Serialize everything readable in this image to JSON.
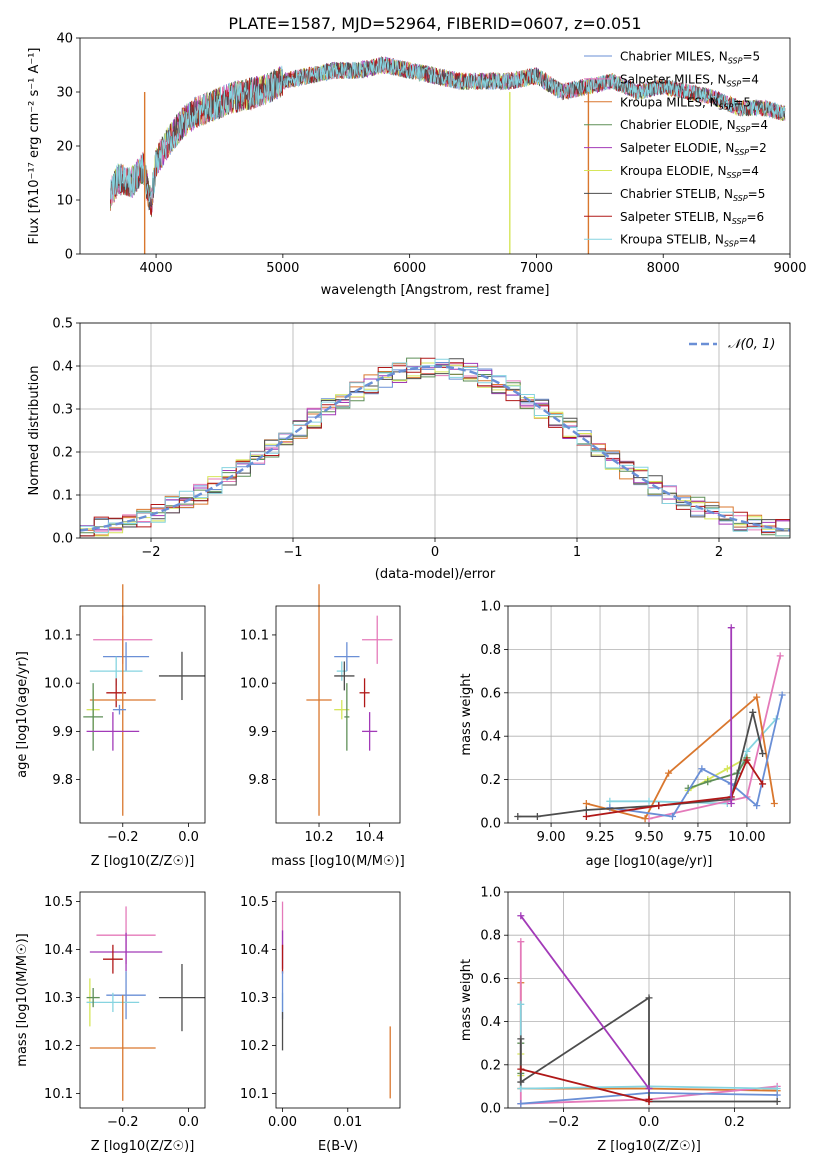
{
  "chart_data": [
    {
      "id": "spectrum",
      "type": "line",
      "title": "PLATE=1587, MJD=52964, FIBERID=0607, z=0.051",
      "xlabel": "wavelength [Angstrom, rest frame]",
      "ylabel": "Flux [fλ10⁻¹⁷ erg cm⁻² s⁻¹ A⁻¹]",
      "xlim": [
        3400,
        9000
      ],
      "ylim": [
        0,
        40
      ],
      "xticks": [
        4000,
        5000,
        6000,
        7000,
        8000,
        9000
      ],
      "yticks": [
        0,
        10,
        20,
        30,
        40
      ],
      "legend_position": "upper-right",
      "spectrum_anchors": {
        "x": [
          3640,
          3700,
          3800,
          3900,
          3960,
          4000,
          4100,
          4200,
          4300,
          4400,
          4600,
          4800,
          5000,
          5200,
          5400,
          5600,
          5800,
          6000,
          6200,
          6400,
          6600,
          6800,
          7000,
          7200,
          7400,
          7600,
          7800,
          8000,
          8200,
          8400,
          8600,
          8800,
          8960
        ],
        "y": [
          11,
          14,
          13,
          16,
          9,
          17,
          21,
          24,
          26,
          27,
          29,
          30,
          32,
          33,
          34,
          34,
          35,
          34,
          33,
          32,
          32,
          32,
          33,
          30,
          31,
          32,
          30,
          31,
          30,
          29,
          27,
          27,
          26
        ]
      },
      "series": [
        {
          "name": "Chabrier MILES, N_SSP=5",
          "label_main": "Chabrier MILES, N",
          "label_sub": "SSP",
          "label_tail": "=5",
          "color": "#6a8fd6"
        },
        {
          "name": "Salpeter MILES, N_SSP=4",
          "label_main": "Salpeter MILES, N",
          "label_sub": "SSP",
          "label_tail": "=4",
          "color": "#e47aba"
        },
        {
          "name": "Kroupa MILES, N_SSP=5",
          "label_main": "Kroupa MILES, N",
          "label_sub": "SSP",
          "label_tail": "=5",
          "color": "#d9772e"
        },
        {
          "name": "Chabrier ELODIE, N_SSP=4",
          "label_main": "Chabrier ELODIE, N",
          "label_sub": "SSP",
          "label_tail": "=4",
          "color": "#5e8f57"
        },
        {
          "name": "Salpeter ELODIE, N_SSP=2",
          "label_main": "Salpeter ELODIE, N",
          "label_sub": "SSP",
          "label_tail": "=2",
          "color": "#a23ab8"
        },
        {
          "name": "Kroupa ELODIE, N_SSP=4",
          "label_main": "Kroupa ELODIE, N",
          "label_sub": "SSP",
          "label_tail": "=4",
          "color": "#d6e65a"
        },
        {
          "name": "Chabrier STELIB, N_SSP=5",
          "label_main": "Chabrier STELIB, N",
          "label_sub": "SSP",
          "label_tail": "=5",
          "color": "#4d4d4d"
        },
        {
          "name": "Salpeter STELIB, N_SSP=6",
          "label_main": "Salpeter STELIB, N",
          "label_sub": "SSP",
          "label_tail": "=6",
          "color": "#b01818"
        },
        {
          "name": "Kroupa STELIB, N_SSP=4",
          "label_main": "Kroupa STELIB, N",
          "label_sub": "SSP",
          "label_tail": "=4",
          "color": "#86d4e0"
        }
      ],
      "drop_lines": [
        {
          "x": 3910,
          "color": "#d9772e"
        },
        {
          "x": 6790,
          "color": "#d6e65a"
        },
        {
          "x": 7410,
          "color": "#d9772e"
        }
      ]
    },
    {
      "id": "residuals",
      "type": "histogram",
      "xlabel": "(data-model)/error",
      "ylabel": "Normed distribution",
      "xlim": [
        -2.5,
        2.5
      ],
      "ylim": [
        0,
        0.5
      ],
      "xticks": [
        -2,
        -1,
        0,
        1,
        2
      ],
      "yticks": [
        0.0,
        0.1,
        0.2,
        0.3,
        0.4,
        0.5
      ],
      "grid": true,
      "bin_width": 0.1,
      "reference_curve": {
        "name": "𝒩(0, 1)",
        "type": "gaussian",
        "mean": 0,
        "sigma": 1,
        "color": "#6a8fd6",
        "style": "dashed"
      },
      "legend_position": "upper-right"
    },
    {
      "id": "Z_vs_age",
      "type": "errorbar",
      "xlabel": "Z [log10(Z/Z☉)]",
      "ylabel": "age [log10(age/yr)]",
      "xlim": [
        -0.33,
        0.05
      ],
      "ylim": [
        9.71,
        10.16
      ],
      "xticks": [
        -0.2,
        0.0
      ],
      "yticks": [
        9.8,
        9.9,
        10.0,
        10.1
      ],
      "points": [
        {
          "color": "#e47aba",
          "x": -0.2,
          "xerr": 0.09,
          "y": 10.09,
          "yerr": 0.05
        },
        {
          "color": "#6a8fd6",
          "x": -0.19,
          "xerr": 0.07,
          "y": 10.055,
          "yerr": 0.03
        },
        {
          "color": "#86d4e0",
          "x": -0.22,
          "xerr": 0.08,
          "y": 10.025,
          "yerr": 0.03
        },
        {
          "color": "#4d4d4d",
          "x": -0.02,
          "xerr": 0.07,
          "y": 10.015,
          "yerr": 0.05
        },
        {
          "color": "#b01818",
          "x": -0.22,
          "xerr": 0.03,
          "y": 9.98,
          "yerr": 0.03
        },
        {
          "color": "#d9772e",
          "x": -0.2,
          "xerr": 0.1,
          "y": 9.965,
          "yerr": 0.24
        },
        {
          "color": "#d6e65a",
          "x": -0.29,
          "xerr": 0.02,
          "y": 9.945,
          "yerr": 0.04
        },
        {
          "color": "#5e8f57",
          "x": -0.29,
          "xerr": 0.03,
          "y": 9.93,
          "yerr": 0.07
        },
        {
          "color": "#6a8fd6",
          "x": -0.21,
          "xerr": 0.02,
          "y": 9.945,
          "yerr": 0.01
        },
        {
          "color": "#a23ab8",
          "x": -0.23,
          "xerr": 0.08,
          "y": 9.9,
          "yerr": 0.04
        }
      ]
    },
    {
      "id": "mass_vs_age",
      "type": "errorbar",
      "xlabel": "mass [log10(M/M☉)]",
      "ylabel": "",
      "xlim": [
        10.03,
        10.52
      ],
      "ylim": [
        9.71,
        10.16
      ],
      "xticks": [
        10.2,
        10.4
      ],
      "yticks": [
        9.8,
        9.9,
        10.0,
        10.1
      ],
      "points": [
        {
          "color": "#e47aba",
          "x": 10.43,
          "xerr": 0.06,
          "y": 10.09,
          "yerr": 0.05
        },
        {
          "color": "#6a8fd6",
          "x": 10.31,
          "xerr": 0.05,
          "y": 10.055,
          "yerr": 0.03
        },
        {
          "color": "#86d4e0",
          "x": 10.29,
          "xerr": 0.02,
          "y": 10.025,
          "yerr": 0.02
        },
        {
          "color": "#4d4d4d",
          "x": 10.3,
          "xerr": 0.04,
          "y": 10.015,
          "yerr": 0.03
        },
        {
          "color": "#b01818",
          "x": 10.38,
          "xerr": 0.02,
          "y": 9.98,
          "yerr": 0.03
        },
        {
          "color": "#d9772e",
          "x": 10.2,
          "xerr": 0.05,
          "y": 9.965,
          "yerr": 0.24
        },
        {
          "color": "#d6e65a",
          "x": 10.29,
          "xerr": 0.03,
          "y": 9.945,
          "yerr": 0.02
        },
        {
          "color": "#5e8f57",
          "x": 10.31,
          "xerr": 0.01,
          "y": 9.93,
          "yerr": 0.07
        },
        {
          "color": "#a23ab8",
          "x": 10.4,
          "xerr": 0.03,
          "y": 9.9,
          "yerr": 0.04
        }
      ]
    },
    {
      "id": "age_weights",
      "type": "line",
      "xlabel": "age [log10(age/yr)]",
      "ylabel": "mass weight",
      "xlim": [
        8.78,
        10.22
      ],
      "ylim": [
        0,
        1.0
      ],
      "xticks": [
        9.0,
        9.25,
        9.5,
        9.75,
        10.0
      ],
      "yticks": [
        0.0,
        0.2,
        0.4,
        0.6,
        0.8,
        1.0
      ],
      "grid": true,
      "series": [
        {
          "color": "#d6e65a",
          "x": [
            9.7,
            9.8,
            9.9,
            10.0
          ],
          "y": [
            0.15,
            0.2,
            0.25,
            0.3
          ]
        },
        {
          "color": "#86d4e0",
          "x": [
            9.3,
            9.5,
            9.9,
            10.0,
            10.15
          ],
          "y": [
            0.1,
            0.1,
            0.09,
            0.33,
            0.48
          ]
        },
        {
          "color": "#5e8f57",
          "x": [
            9.7,
            9.8,
            9.95,
            10.0
          ],
          "y": [
            0.16,
            0.19,
            0.23,
            0.3
          ]
        },
        {
          "color": "#e47aba",
          "x": [
            9.5,
            9.9,
            10.0,
            10.17
          ],
          "y": [
            0.02,
            0.1,
            0.12,
            0.77
          ]
        },
        {
          "color": "#d9772e",
          "x": [
            9.18,
            9.48,
            9.6,
            10.05,
            10.14
          ],
          "y": [
            0.09,
            0.02,
            0.23,
            0.58,
            0.09
          ]
        },
        {
          "color": "#6a8fd6",
          "x": [
            9.3,
            9.62,
            9.77,
            9.92,
            10.05,
            10.18
          ],
          "y": [
            0.07,
            0.03,
            0.25,
            0.18,
            0.08,
            0.59
          ]
        },
        {
          "color": "#4d4d4d",
          "x": [
            8.83,
            8.93,
            9.18,
            9.55,
            9.92,
            10.03,
            10.08
          ],
          "y": [
            0.03,
            0.03,
            0.06,
            0.08,
            0.11,
            0.51,
            0.32
          ]
        },
        {
          "color": "#b01818",
          "x": [
            9.18,
            9.55,
            9.92,
            10.0,
            10.08
          ],
          "y": [
            0.03,
            0.08,
            0.12,
            0.29,
            0.18
          ]
        },
        {
          "color": "#a23ab8",
          "x": [
            9.92,
            9.92
          ],
          "y": [
            0.09,
            0.9
          ]
        }
      ]
    },
    {
      "id": "Z_vs_mass",
      "type": "errorbar",
      "xlabel": "Z [log10(Z/Z☉)]",
      "ylabel": "mass [log10(M/M☉)]",
      "xlim": [
        -0.33,
        0.05
      ],
      "ylim": [
        10.07,
        10.52
      ],
      "xticks": [
        -0.2,
        0.0
      ],
      "yticks": [
        10.1,
        10.2,
        10.3,
        10.4,
        10.5
      ],
      "points": [
        {
          "color": "#e47aba",
          "x": -0.19,
          "xerr": 0.09,
          "y": 10.43,
          "yerr": 0.06
        },
        {
          "color": "#a23ab8",
          "x": -0.19,
          "xerr": 0.11,
          "y": 10.395,
          "yerr": 0.04
        },
        {
          "color": "#b01818",
          "x": -0.23,
          "xerr": 0.03,
          "y": 10.38,
          "yerr": 0.03
        },
        {
          "color": "#6a8fd6",
          "x": -0.19,
          "xerr": 0.06,
          "y": 10.305,
          "yerr": 0.05
        },
        {
          "color": "#4d4d4d",
          "x": -0.02,
          "xerr": 0.07,
          "y": 10.3,
          "yerr": 0.07
        },
        {
          "color": "#d6e65a",
          "x": -0.3,
          "xerr": 0.01,
          "y": 10.29,
          "yerr": 0.05
        },
        {
          "color": "#86d4e0",
          "x": -0.23,
          "xerr": 0.08,
          "y": 10.29,
          "yerr": 0.02
        },
        {
          "color": "#5e8f57",
          "x": -0.29,
          "xerr": 0.02,
          "y": 10.3,
          "yerr": 0.02
        },
        {
          "color": "#d9772e",
          "x": -0.2,
          "xerr": 0.1,
          "y": 10.195,
          "yerr": 0.11
        }
      ]
    },
    {
      "id": "EBV_vs_mass",
      "type": "errorbar",
      "xlabel": "E(B-V)",
      "ylabel": "",
      "xlim": [
        -0.001,
        0.018
      ],
      "ylim": [
        10.07,
        10.52
      ],
      "xticks": [
        0.0,
        0.01
      ],
      "yticks": [
        10.1,
        10.2,
        10.3,
        10.4,
        10.5
      ],
      "points": [
        {
          "color": "#e47aba",
          "x": 0.0,
          "xerr": 0,
          "y": 10.45,
          "yerr": 0.05
        },
        {
          "color": "#a23ab8",
          "x": 0.0,
          "xerr": 0,
          "y": 10.4,
          "yerr": 0.04
        },
        {
          "color": "#b01818",
          "x": 0.0,
          "xerr": 0,
          "y": 10.38,
          "yerr": 0.03
        },
        {
          "color": "#86d4e0",
          "x": 0.0,
          "xerr": 0,
          "y": 10.29,
          "yerr": 0.02
        },
        {
          "color": "#6a8fd6",
          "x": 0.0,
          "xerr": 0,
          "y": 10.305,
          "yerr": 0.05
        },
        {
          "color": "#4d4d4d",
          "x": 0.0,
          "xerr": 0,
          "y": 10.23,
          "yerr": 0.04
        },
        {
          "color": "#d9772e",
          "x": 0.0165,
          "xerr": 0,
          "y": 10.165,
          "yerr": 0.075
        }
      ]
    },
    {
      "id": "Z_weights",
      "type": "line",
      "xlabel": "Z [log10(Z/Z☉)]",
      "ylabel": "mass weight",
      "xlim": [
        -0.33,
        0.33
      ],
      "ylim": [
        0,
        1.0
      ],
      "xticks": [
        -0.2,
        0.0,
        0.2
      ],
      "yticks": [
        0.0,
        0.2,
        0.4,
        0.6,
        0.8,
        1.0
      ],
      "grid": true,
      "series": [
        {
          "color": "#d6e65a",
          "x": [
            -0.3,
            -0.3
          ],
          "y": [
            0.15,
            0.25
          ]
        },
        {
          "color": "#5e8f57",
          "x": [
            -0.3,
            -0.3
          ],
          "y": [
            0.16,
            0.3
          ]
        },
        {
          "color": "#d9772e",
          "x": [
            -0.3,
            -0.3,
            0.0,
            0.3
          ],
          "y": [
            0.58,
            0.09,
            0.09,
            0.08
          ]
        },
        {
          "color": "#e47aba",
          "x": [
            -0.3,
            -0.3,
            0.0,
            0.3
          ],
          "y": [
            0.77,
            0.02,
            0.04,
            0.1
          ]
        },
        {
          "color": "#86d4e0",
          "x": [
            -0.3,
            -0.3,
            0.0,
            0.3
          ],
          "y": [
            0.48,
            0.09,
            0.1,
            0.09
          ]
        },
        {
          "color": "#6a8fd6",
          "x": [
            -0.3,
            0.0,
            0.3
          ],
          "y": [
            0.02,
            0.07,
            0.06
          ]
        },
        {
          "color": "#4d4d4d",
          "x": [
            -0.3,
            -0.3,
            0.0,
            0.0,
            0.3
          ],
          "y": [
            0.32,
            0.12,
            0.51,
            0.03,
            0.03
          ]
        },
        {
          "color": "#b01818",
          "x": [
            -0.3,
            0.0,
            0.0
          ],
          "y": [
            0.18,
            0.03,
            0.04
          ]
        },
        {
          "color": "#a23ab8",
          "x": [
            -0.3,
            0.0
          ],
          "y": [
            0.89,
            0.09
          ]
        }
      ]
    }
  ]
}
